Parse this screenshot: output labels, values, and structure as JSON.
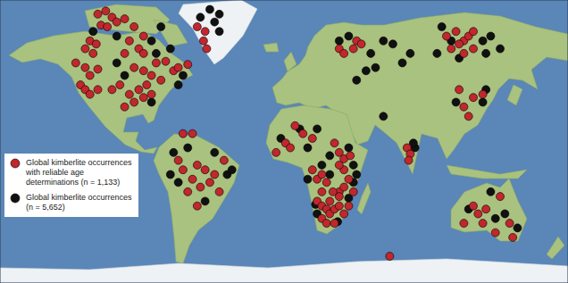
{
  "chart_data": {
    "type": "scatter",
    "xlim": [
      -180,
      180
    ],
    "ylim": [
      -90,
      90
    ],
    "tick_labels": false,
    "grid": false,
    "legend": "left",
    "series": [
      {
        "name": "Global kimberlite occurrences with reliable age determinations (n = 1,133)",
        "color": "#c1272d",
        "marker": "circle",
        "x": [
          -118,
          -113,
          -109,
          -106,
          -116,
          -112,
          -101,
          -95,
          -89,
          -98,
          -92,
          -89,
          -101,
          -123,
          -119,
          -126,
          -121,
          -132,
          -126,
          -118,
          -123,
          -95,
          -89,
          -81,
          -75,
          -84,
          -78,
          -70,
          -67,
          -61,
          -129,
          -126,
          -123,
          -118,
          -109,
          -104,
          -98,
          -92,
          -89,
          -95,
          -101,
          -87,
          -84,
          -55,
          -50,
          -49,
          -51,
          -67,
          -64,
          -55,
          -50,
          -58,
          -53,
          -47,
          -44,
          -41,
          -55,
          -61,
          -38,
          -64,
          -58,
          1,
          4,
          7,
          12,
          18,
          -5,
          18,
          21,
          24,
          27,
          32,
          35,
          38,
          41,
          35,
          21,
          24,
          27,
          29,
          32,
          35,
          29,
          24,
          27,
          32,
          38,
          41,
          35,
          44,
          38,
          24,
          31,
          35,
          38,
          42,
          78,
          80,
          79,
          46,
          49,
          44,
          35,
          38,
          103,
          109,
          114,
          111,
          117,
          120,
          106,
          114,
          120,
          114,
          120,
          126,
          117,
          111,
          120,
          123,
          126,
          128,
          137,
          143,
          145,
          134,
          114,
          67
        ],
        "y": [
          81,
          83,
          79,
          76,
          74,
          73,
          78,
          73,
          67,
          64,
          59,
          56,
          56,
          64,
          62,
          59,
          56,
          50,
          47,
          46,
          42,
          47,
          45,
          50,
          51,
          42,
          39,
          45,
          47,
          49,
          36,
          33,
          30,
          33,
          33,
          36,
          30,
          33,
          28,
          25,
          22,
          36,
          30,
          73,
          70,
          59,
          64,
          -12,
          -18,
          -15,
          -18,
          -24,
          -29,
          -26,
          -21,
          -32,
          -41,
          -32,
          -12,
          5,
          5,
          -1,
          -4,
          10,
          5,
          2,
          -7,
          -18,
          -24,
          -21,
          -26,
          -1,
          -7,
          -18,
          -24,
          -32,
          -38,
          -41,
          -43,
          -46,
          -43,
          -41,
          -38,
          -49,
          -52,
          -52,
          -46,
          -41,
          -35,
          -32,
          -29,
          -32,
          -32,
          -15,
          -11,
          -9,
          -4,
          -8,
          -12,
          64,
          62,
          59,
          59,
          56,
          67,
          70,
          64,
          62,
          67,
          70,
          59,
          56,
          59,
          22,
          28,
          30,
          16,
          33,
          -41,
          -46,
          -52,
          -43,
          -35,
          -52,
          -61,
          -58,
          -52,
          -73
        ]
      },
      {
        "name": "Global kimberlite occurrences (n = 5,652)",
        "color": "#111111",
        "marker": "circle",
        "x": [
          -121,
          -106,
          -84,
          -78,
          -53,
          -44,
          -41,
          -81,
          -72,
          -106,
          -101,
          -67,
          -64,
          -84,
          -47,
          -41,
          -70,
          -61,
          -44,
          -36,
          -50,
          -67,
          -72,
          -33,
          -2,
          10,
          15,
          21,
          29,
          41,
          44,
          46,
          29,
          24,
          15,
          34,
          41,
          44,
          21,
          20,
          35,
          41,
          55,
          63,
          69,
          52,
          46,
          58,
          75,
          80,
          100,
          106,
          126,
          131,
          137,
          128,
          97,
          111,
          109,
          126,
          128,
          83,
          82,
          117,
          131,
          140,
          148,
          134,
          63
        ],
        "y": [
          70,
          67,
          64,
          73,
          79,
          76,
          70,
          56,
          59,
          50,
          42,
          36,
          42,
          25,
          84,
          81,
          -7,
          -4,
          -7,
          -21,
          -38,
          -26,
          -21,
          -18,
          2,
          8,
          -4,
          8,
          -9,
          -4,
          -15,
          -21,
          -21,
          -15,
          -24,
          -51,
          -36,
          -26,
          -46,
          -40,
          64,
          67,
          56,
          64,
          62,
          45,
          39,
          47,
          50,
          56,
          73,
          64,
          64,
          67,
          59,
          56,
          56,
          53,
          25,
          25,
          33,
          -4,
          -1,
          -43,
          -32,
          -46,
          -55,
          -49,
          16
        ]
      }
    ]
  }
}
